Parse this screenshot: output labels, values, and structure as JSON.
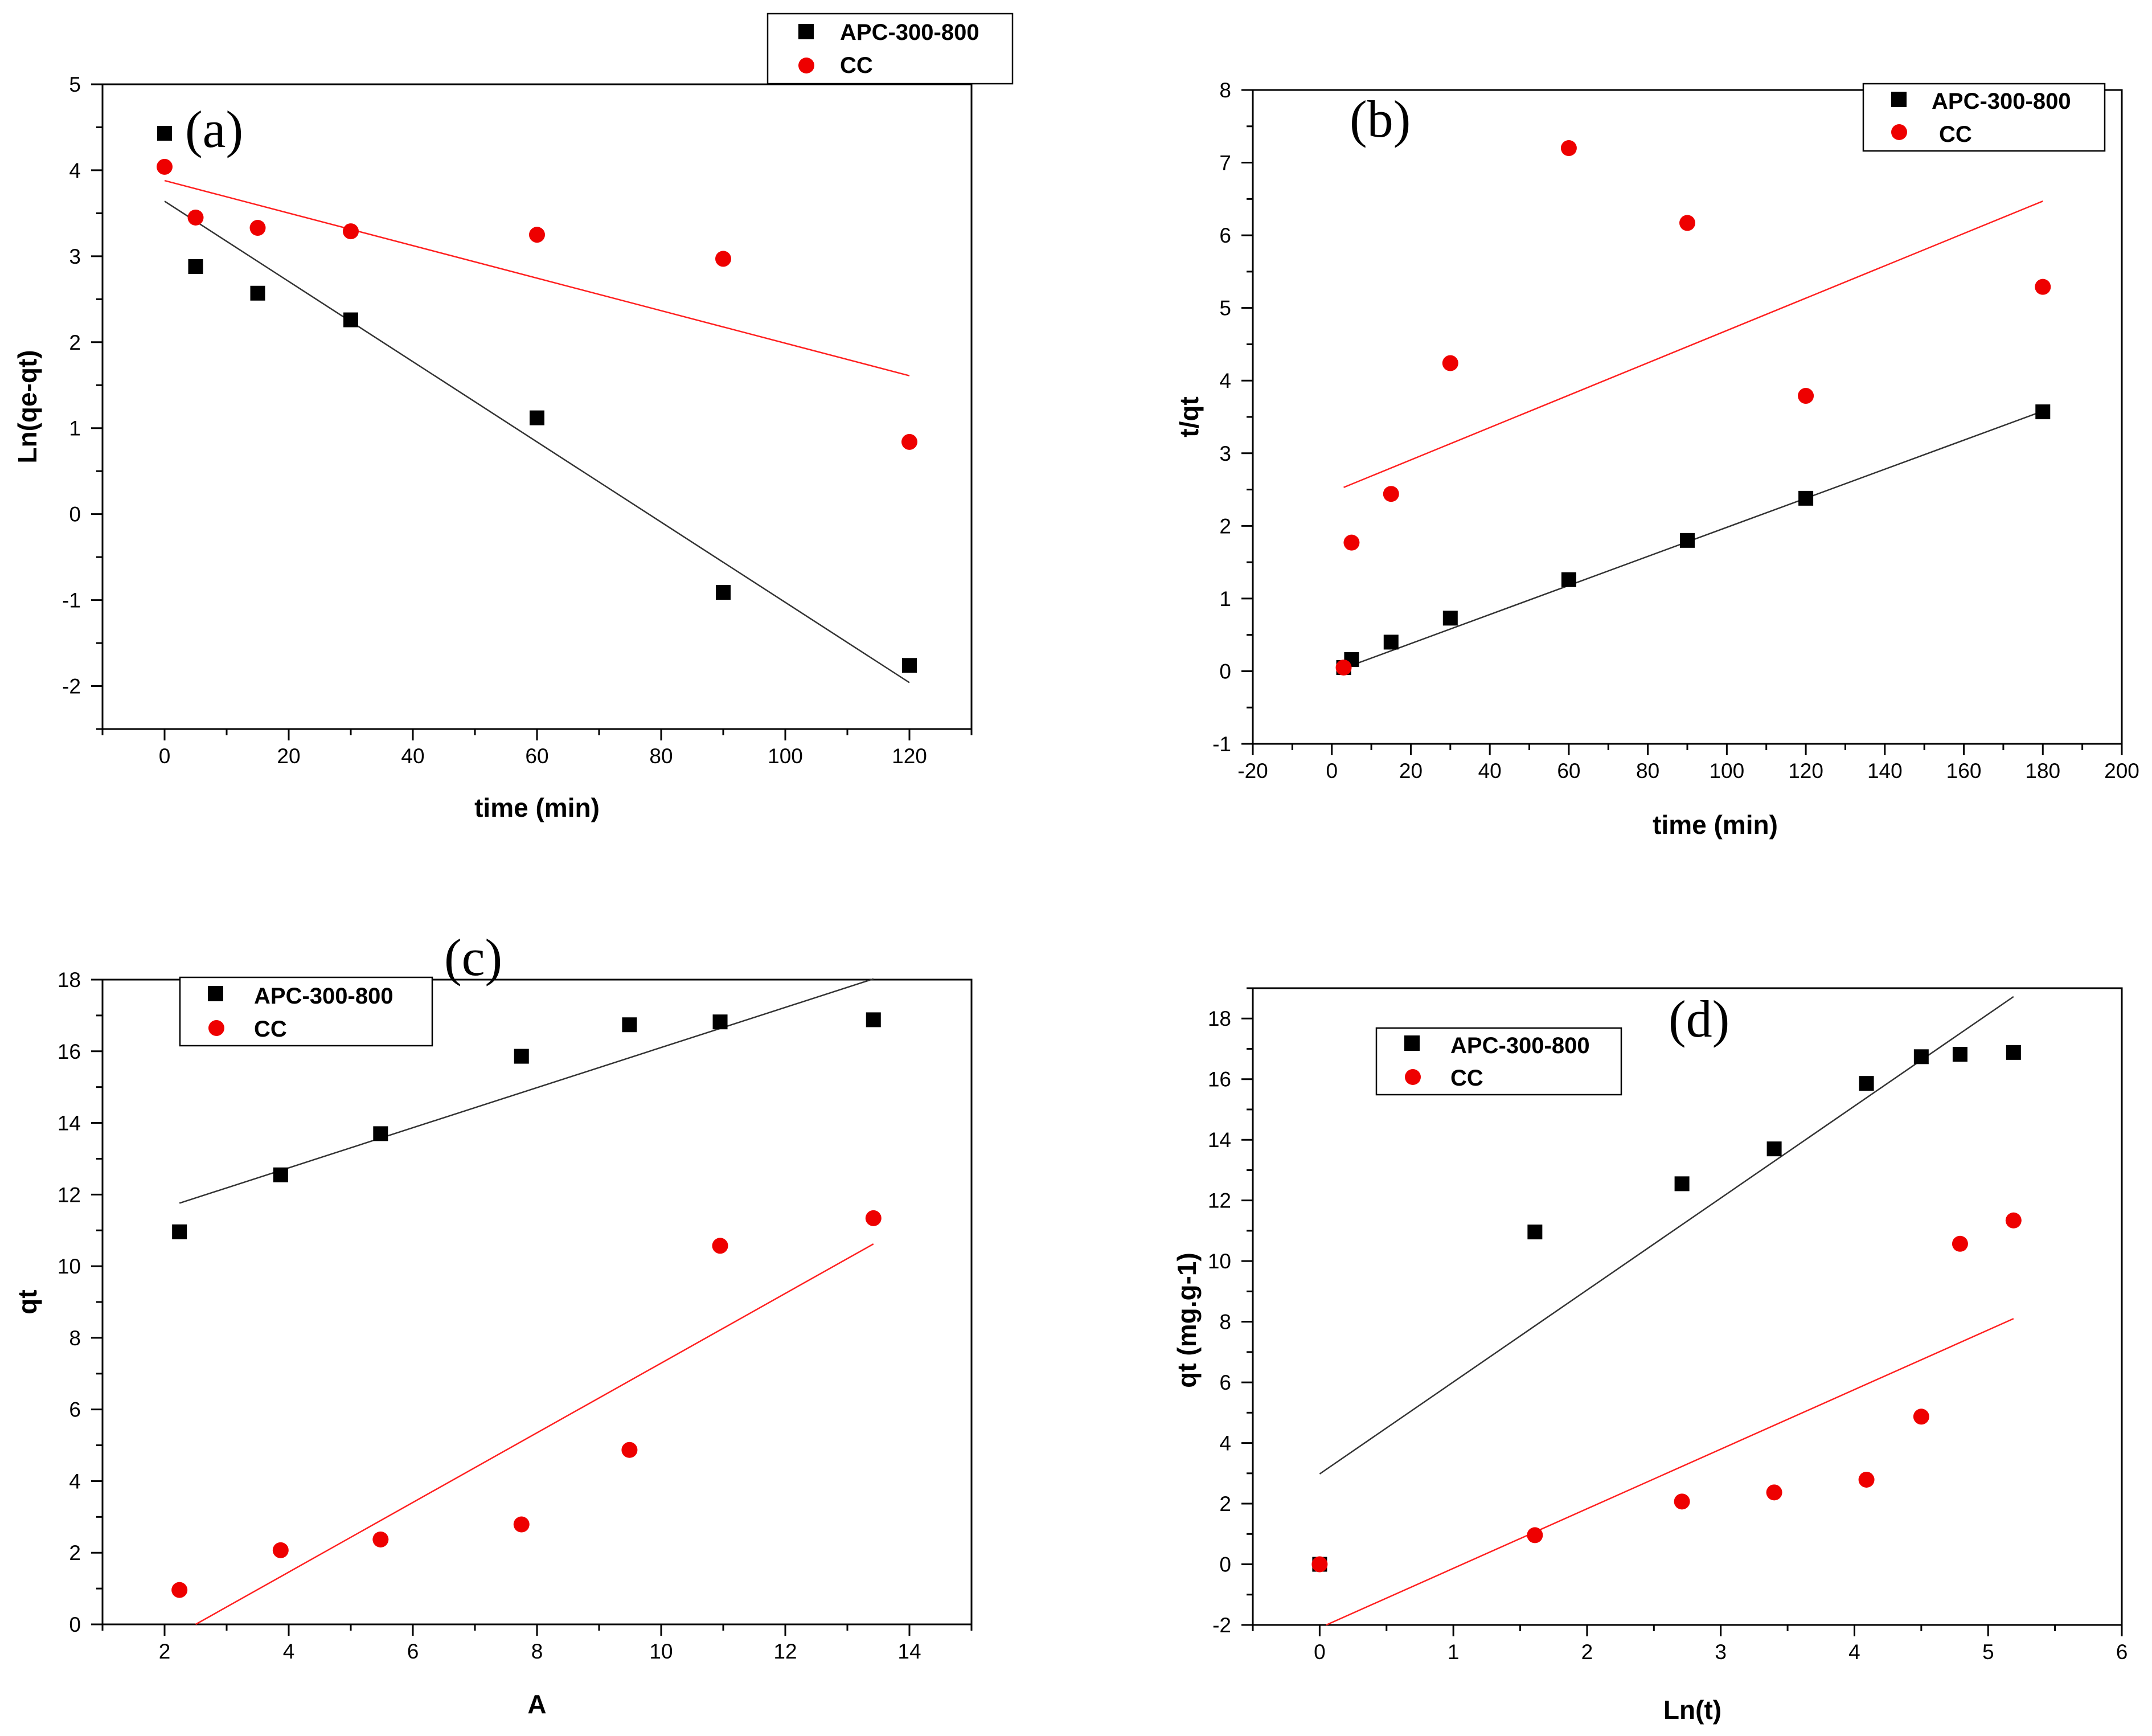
{
  "colors": {
    "series_black": "#000000",
    "series_red": "#ee0000",
    "fit_black": "#333333",
    "fit_red": "#ff2020"
  },
  "chart_data": [
    {
      "id": "a",
      "type": "scatter",
      "panel_label": "(a)",
      "xlabel": "time (min)",
      "ylabel": "Ln(qe-qt)",
      "xlim": [
        -10,
        130
      ],
      "ylim": [
        -2.5,
        5
      ],
      "xticks": [
        "0",
        "20",
        "40",
        "60",
        "80",
        "100",
        "120"
      ],
      "yticks": [
        "-2",
        "-1",
        "0",
        "1",
        "2",
        "3",
        "4",
        "5"
      ],
      "legend_position": "top-right outside",
      "series": [
        {
          "name": "APC-300-800",
          "marker": "square",
          "color": "#000000",
          "x": [
            0,
            5,
            15,
            30,
            60,
            90,
            120
          ],
          "y": [
            4.43,
            2.88,
            2.57,
            2.26,
            1.12,
            -0.91,
            -1.76
          ],
          "fit": {
            "x": [
              0,
              120
            ],
            "y": [
              3.64,
              -1.96
            ]
          }
        },
        {
          "name": "CC",
          "marker": "circle",
          "color": "#ee0000",
          "x": [
            0,
            5,
            15,
            30,
            60,
            90,
            120
          ],
          "y": [
            4.04,
            3.45,
            3.33,
            3.29,
            3.25,
            2.97,
            0.84
          ],
          "fit": {
            "x": [
              0,
              120
            ],
            "y": [
              3.88,
              1.61
            ]
          }
        }
      ]
    },
    {
      "id": "b",
      "type": "scatter",
      "panel_label": "(b)",
      "xlabel": "time (min)",
      "ylabel": "t/qt",
      "xlim": [
        -20,
        200
      ],
      "ylim": [
        -1,
        8
      ],
      "xticks": [
        "-20",
        "0",
        "20",
        "40",
        "60",
        "80",
        "100",
        "120",
        "140",
        "160",
        "180",
        "200"
      ],
      "yticks": [
        "-1",
        "0",
        "1",
        "2",
        "3",
        "4",
        "5",
        "6",
        "7",
        "8"
      ],
      "legend_position": "top-right",
      "series": [
        {
          "name": "APC-300-800",
          "marker": "square",
          "color": "#000000",
          "x": [
            3,
            5,
            15,
            30,
            60,
            90,
            120,
            180
          ],
          "y": [
            0.05,
            0.16,
            0.4,
            0.73,
            1.26,
            1.8,
            2.38,
            3.57
          ],
          "fit": {
            "x": [
              3,
              180
            ],
            "y": [
              0.04,
              3.58
            ]
          }
        },
        {
          "name": "CC",
          "marker": "circle",
          "color": "#ee0000",
          "x": [
            3,
            5,
            15,
            30,
            60,
            90,
            120,
            180
          ],
          "y": [
            0.05,
            1.77,
            2.44,
            4.24,
            7.2,
            6.17,
            3.79,
            5.29
          ],
          "fit": {
            "x": [
              3,
              180
            ],
            "y": [
              2.53,
              6.47
            ]
          }
        }
      ]
    },
    {
      "id": "c",
      "type": "scatter",
      "panel_label": "(c)",
      "xlabel": "A",
      "ylabel": "qt",
      "xlim": [
        1,
        15
      ],
      "ylim": [
        0,
        18
      ],
      "xticks": [
        "2",
        "4",
        "6",
        "8",
        "10",
        "12",
        "14"
      ],
      "yticks": [
        "0",
        "2",
        "4",
        "6",
        "8",
        "10",
        "12",
        "14",
        "16",
        "18"
      ],
      "legend_position": "top-left",
      "series": [
        {
          "name": "APC-300-800",
          "marker": "square",
          "color": "#000000",
          "x": [
            2.24,
            3.87,
            5.48,
            7.75,
            9.49,
            10.95,
            13.42
          ],
          "y": [
            10.96,
            12.55,
            13.7,
            15.86,
            16.74,
            16.82,
            16.88
          ],
          "fit": {
            "x": [
              2.24,
              13.42
            ],
            "y": [
              11.76,
              18.02
            ]
          }
        },
        {
          "name": "CC",
          "marker": "circle",
          "color": "#ee0000",
          "x": [
            2.24,
            3.87,
            5.48,
            7.75,
            9.49,
            10.95,
            13.42
          ],
          "y": [
            0.96,
            2.07,
            2.37,
            2.79,
            4.87,
            10.57,
            11.34
          ],
          "fit": {
            "x": [
              2.5,
              13.42
            ],
            "y": [
              0.0,
              10.62
            ]
          }
        }
      ]
    },
    {
      "id": "d",
      "type": "scatter",
      "panel_label": "(d)",
      "xlabel": "Ln(t)",
      "ylabel": "qt (mg.g-1)",
      "xlim": [
        -0.5,
        6
      ],
      "ylim": [
        -2,
        19
      ],
      "xticks": [
        "0",
        "1",
        "2",
        "3",
        "4",
        "5",
        "6"
      ],
      "yticks": [
        "-2",
        "0",
        "2",
        "4",
        "6",
        "8",
        "10",
        "12",
        "14",
        "16",
        "18"
      ],
      "legend_position": "top-left",
      "series": [
        {
          "name": "APC-300-800",
          "marker": "square",
          "color": "#000000",
          "x": [
            0,
            1.61,
            2.71,
            3.4,
            4.09,
            4.5,
            4.79,
            5.19
          ],
          "y": [
            0,
            10.96,
            12.55,
            13.7,
            15.86,
            16.74,
            16.82,
            16.88
          ],
          "fit": {
            "x": [
              0,
              5.19
            ],
            "y": [
              2.98,
              18.72
            ]
          }
        },
        {
          "name": "CC",
          "marker": "circle",
          "color": "#ee0000",
          "x": [
            0,
            1.61,
            2.71,
            3.4,
            4.09,
            4.5,
            4.79,
            5.19
          ],
          "y": [
            0,
            0.96,
            2.07,
            2.37,
            2.79,
            4.87,
            10.57,
            11.34
          ],
          "fit": {
            "x": [
              0.05,
              5.19
            ],
            "y": [
              -2.0,
              8.1
            ]
          }
        }
      ]
    }
  ]
}
